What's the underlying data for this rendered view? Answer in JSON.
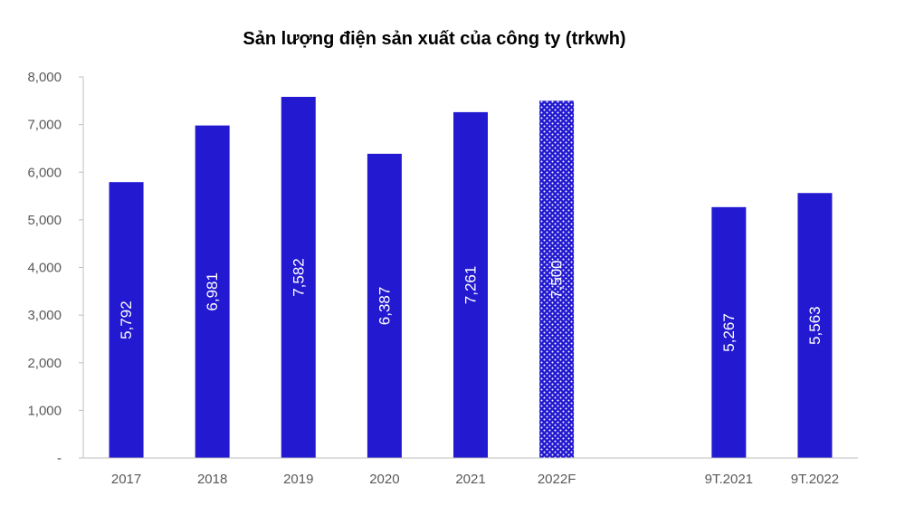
{
  "chart_data": {
    "type": "bar",
    "title": "Sản lượng điện sản xuất của công ty (trkwh)",
    "xlabel": "",
    "ylabel": "",
    "categories": [
      "2017",
      "2018",
      "2019",
      "2020",
      "2021",
      "2022F",
      "",
      "9T.2021",
      "9T.2022"
    ],
    "values": [
      5792,
      6981,
      7582,
      6387,
      7261,
      7500,
      null,
      5267,
      5563
    ],
    "data_labels": [
      "5,792",
      "6,981",
      "7,582",
      "6,387",
      "7,261",
      "7,500",
      "",
      "5,267",
      "5,563"
    ],
    "patterned": [
      false,
      false,
      false,
      false,
      false,
      true,
      false,
      false,
      false
    ],
    "ylim": [
      0,
      8000
    ],
    "yticks": [
      "-",
      "1,000",
      "2,000",
      "3,000",
      "4,000",
      "5,000",
      "6,000",
      "7,000",
      "8,000"
    ],
    "grid": false,
    "legend": "none",
    "colors": {
      "bar": "#2219D0",
      "axis": "#BFBFBF",
      "tick_text": "#595959"
    }
  }
}
